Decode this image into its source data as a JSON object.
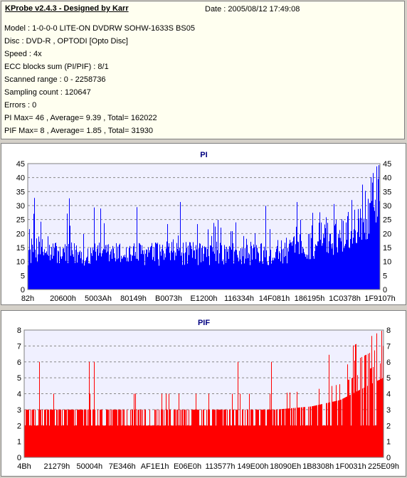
{
  "header": {
    "title": "KProbe v2.4.3 - Designed by Karr",
    "date": "Date : 2005/08/12 17:49:08"
  },
  "info_lines": [
    "Model : 1-0-0-0 LITE-ON DVDRW SOHW-1633S BS05",
    "Disc : DVD-R , OPTODI [Opto Disc]",
    "Speed : 4x",
    "ECC blocks sum (PI/PIF) : 8/1",
    "Scanned range : 0 - 2258736",
    "Sampling count : 120647",
    "Errors : 0",
    "PI Max= 46 , Average= 9.39 , Total= 162022",
    "PIF Max= 8 , Average= 1.85 , Total= 31930"
  ],
  "colors": {
    "pi": "#0000ff",
    "pif": "#ff0000",
    "title": "#000080",
    "plot_bg": "#f0f0ff"
  },
  "chart_data": [
    {
      "type": "bar",
      "title": "PI",
      "ylim": [
        0,
        45
      ],
      "y_ticks": [
        0,
        5,
        10,
        15,
        20,
        25,
        30,
        35,
        40,
        45
      ],
      "x_tick_labels": [
        "82h",
        "20600h",
        "5003Ah",
        "80149h",
        "B0073h",
        "E1200h",
        "116334h",
        "14F081h",
        "186195h",
        "1C0378h",
        "1F9107h"
      ],
      "grid": true,
      "profile": [
        [
          0,
          17
        ],
        [
          2,
          20
        ],
        [
          5,
          18
        ],
        [
          10,
          17
        ],
        [
          20,
          17
        ],
        [
          30,
          17
        ],
        [
          40,
          17
        ],
        [
          50,
          17
        ],
        [
          60,
          17
        ],
        [
          70,
          17.5
        ],
        [
          75,
          19
        ],
        [
          80,
          21
        ],
        [
          85,
          23
        ],
        [
          90,
          27
        ],
        [
          95,
          33
        ],
        [
          98,
          38
        ],
        [
          100,
          40
        ]
      ],
      "max": 46,
      "average": 9.39
    },
    {
      "type": "bar",
      "title": "PIF",
      "ylim": [
        0,
        8
      ],
      "y_ticks": [
        0,
        1,
        2,
        3,
        4,
        5,
        6,
        7,
        8
      ],
      "x_tick_labels": [
        "4Bh",
        "21279h",
        "50004h",
        "7E346h",
        "AF1E1h",
        "E06E0h",
        "113577h",
        "149E00h",
        "18090Eh",
        "1B8308h",
        "1F0031h",
        "225E09h"
      ],
      "grid": true,
      "profile": [
        [
          0,
          3
        ],
        [
          20,
          3
        ],
        [
          40,
          3
        ],
        [
          60,
          3
        ],
        [
          70,
          3
        ],
        [
          80,
          3.2
        ],
        [
          88,
          3.6
        ],
        [
          94,
          4.3
        ],
        [
          100,
          5
        ]
      ],
      "max": 8,
      "average": 1.85
    }
  ]
}
